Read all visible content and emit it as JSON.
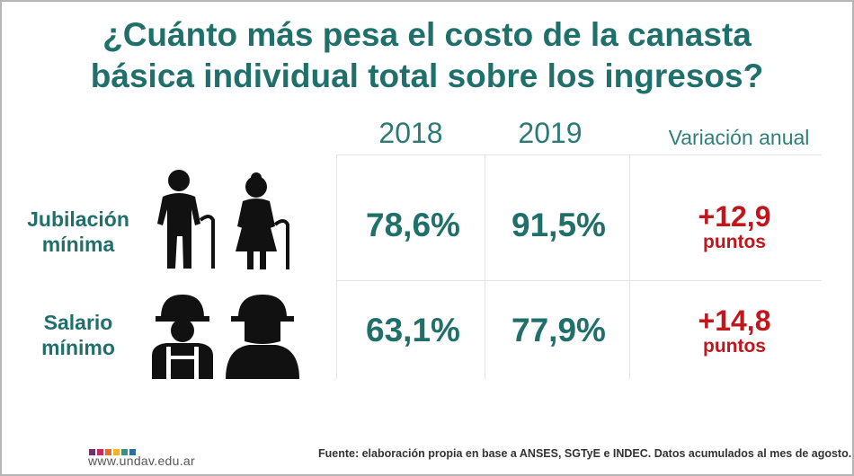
{
  "chart_data": {
    "type": "table",
    "title_line1": "¿Cuánto más pesa el costo de la canasta",
    "title_line2": "básica individual total sobre los ingresos?",
    "columns": [
      "2018",
      "2019",
      "Variación anual"
    ],
    "rows": [
      {
        "label_line1": "Jubilación",
        "label_line2": "mínima",
        "icon": "elderly-couple-icon",
        "value_2018": "78,6%",
        "value_2019": "91,5%",
        "variation": "+12,9",
        "variation_unit": "puntos"
      },
      {
        "label_line1": "Salario",
        "label_line2": "mínimo",
        "icon": "workers-hardhat-icon",
        "value_2018": "63,1%",
        "value_2019": "77,9%",
        "variation": "+14,8",
        "variation_unit": "puntos"
      }
    ]
  },
  "footer": {
    "url": "www.undav.edu.ar",
    "source": "Fuente: elaboración propia en base a ANSES, SGTyE e INDEC. Datos acumulados al mes de agosto."
  },
  "colors": {
    "teal": "#1f6f6a",
    "red": "#c0161c",
    "logo": [
      "#7b2a6b",
      "#c8275f",
      "#e96d27",
      "#f2b22a",
      "#3a8f86",
      "#2b6f9e"
    ]
  }
}
